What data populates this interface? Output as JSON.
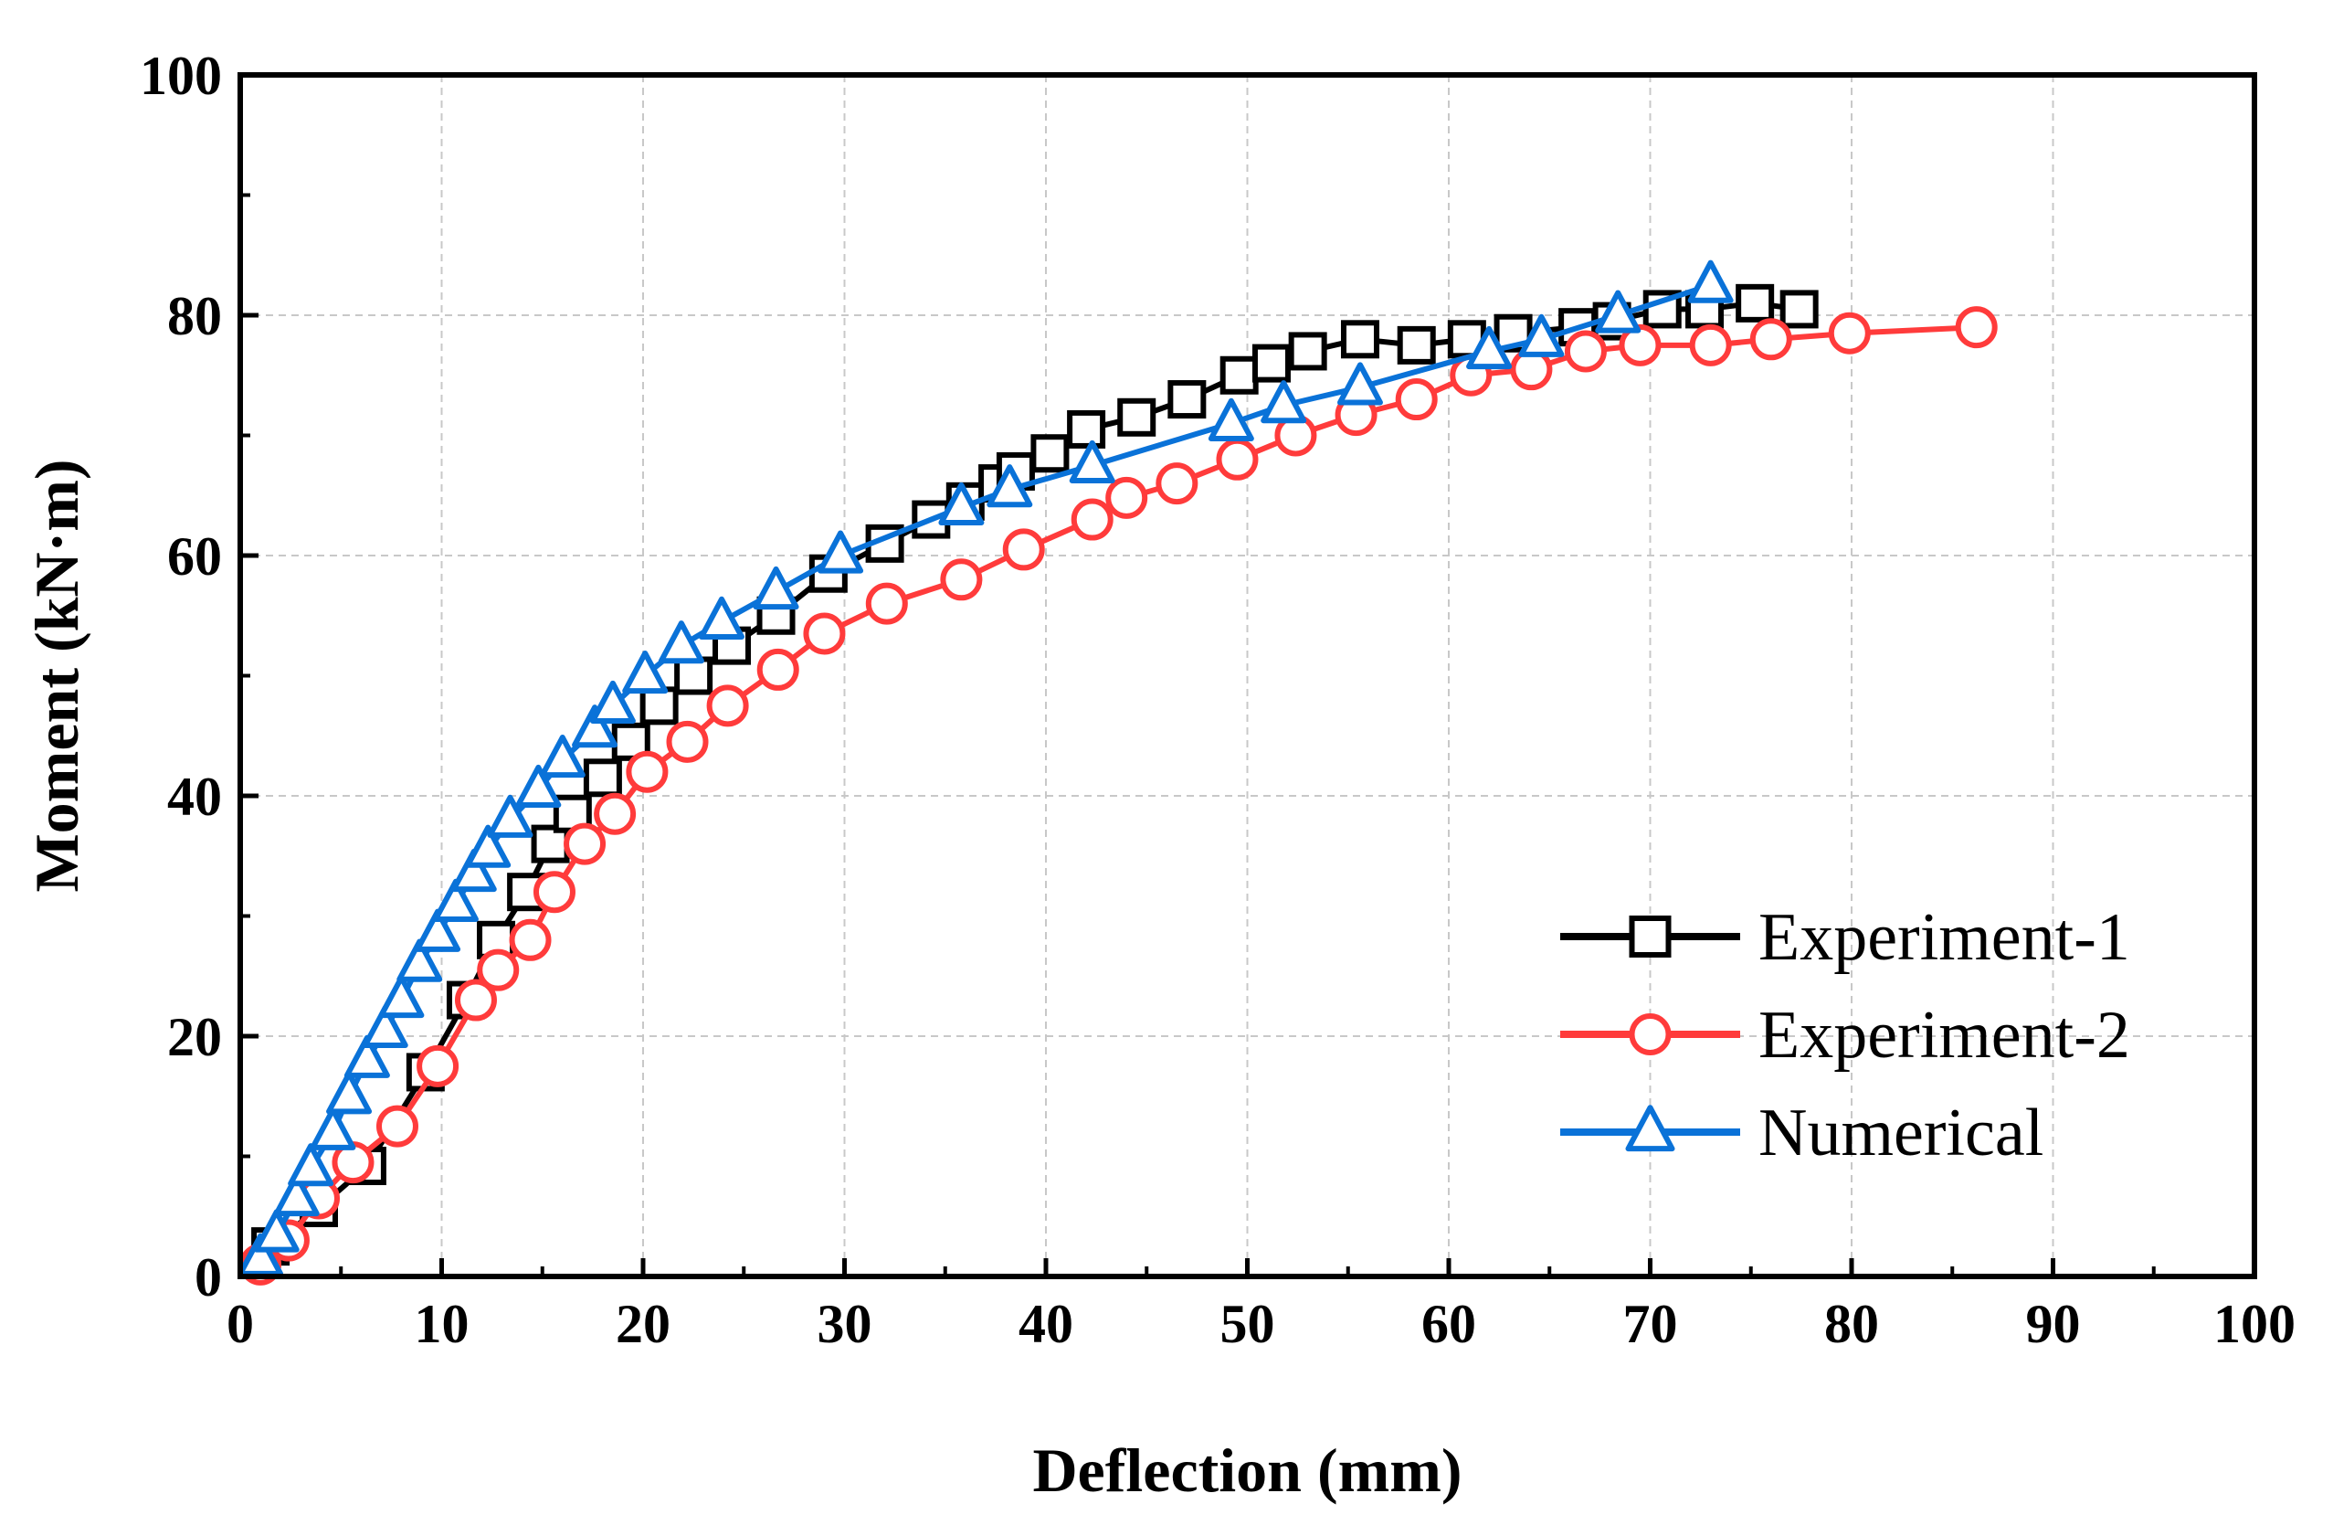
{
  "chart_data": {
    "type": "line",
    "xlabel": "Deflection (mm)",
    "ylabel": "Moment (kN·m)",
    "xlim": [
      0,
      100
    ],
    "ylim": [
      0,
      100
    ],
    "xticks": [
      0,
      10,
      20,
      30,
      40,
      50,
      60,
      70,
      80,
      90,
      100
    ],
    "yticks": [
      0,
      20,
      40,
      60,
      80,
      100
    ],
    "grid": true,
    "legend_position": "bottom-right",
    "series": [
      {
        "name": "Experiment-1",
        "marker": "square",
        "color": "#000000",
        "x": [
          1.5,
          3.9,
          6.3,
          9.2,
          11.2,
          12.7,
          14.2,
          15.4,
          16.5,
          18.0,
          19.4,
          20.8,
          22.5,
          24.4,
          26.6,
          29.2,
          32.0,
          34.3,
          36.0,
          37.6,
          38.5,
          40.2,
          42.0,
          44.5,
          47.0,
          49.6,
          51.2,
          53.0,
          55.6,
          58.4,
          60.9,
          63.2,
          66.4,
          68.1,
          70.6,
          72.7,
          75.2,
          77.4
        ],
        "y": [
          2.5,
          5.7,
          9.2,
          17.0,
          23.0,
          28.0,
          32.0,
          36.0,
          38.5,
          41.5,
          44.5,
          47.5,
          50.0,
          52.5,
          55.0,
          58.5,
          61.0,
          63.0,
          64.5,
          66.0,
          67.0,
          68.5,
          70.5,
          71.5,
          73.0,
          75.0,
          76.0,
          77.0,
          78.0,
          77.5,
          78.0,
          78.5,
          79.0,
          79.5,
          80.5,
          80.5,
          81.0,
          80.5
        ]
      },
      {
        "name": "Experiment-2",
        "marker": "circle",
        "color": "#ff3b3b",
        "x": [
          1.0,
          2.4,
          3.9,
          5.6,
          7.8,
          9.8,
          11.7,
          12.8,
          14.4,
          15.6,
          17.1,
          18.6,
          20.2,
          22.2,
          24.2,
          26.7,
          29.0,
          32.1,
          35.8,
          38.9,
          42.3,
          44.0,
          46.5,
          49.5,
          52.4,
          55.4,
          58.4,
          61.1,
          64.1,
          66.8,
          69.5,
          73.0,
          76.0,
          79.9,
          86.2
        ],
        "y": [
          1.0,
          3.0,
          6.5,
          9.5,
          12.5,
          17.5,
          23.0,
          25.5,
          28.0,
          32.0,
          36.0,
          38.5,
          42.0,
          44.5,
          47.5,
          50.5,
          53.5,
          56.0,
          58.0,
          60.5,
          63.0,
          64.8,
          66.0,
          68.0,
          70.0,
          71.7,
          73.0,
          75.0,
          75.5,
          77.0,
          77.5,
          77.5,
          78.0,
          78.5,
          79.0
        ]
      },
      {
        "name": "Numerical",
        "marker": "triangle",
        "color": "#0a72d8",
        "x": [
          1.0,
          1.8,
          2.8,
          3.5,
          4.6,
          5.4,
          6.3,
          7.2,
          8.0,
          8.9,
          9.8,
          10.7,
          11.6,
          12.3,
          13.4,
          14.8,
          16.0,
          17.6,
          18.5,
          20.1,
          21.9,
          23.9,
          26.6,
          29.8,
          35.8,
          38.2,
          42.3,
          49.2,
          51.8,
          55.6,
          62.0,
          64.6,
          68.4,
          73.0
        ],
        "y": [
          1.5,
          3.5,
          6.5,
          9.0,
          12.0,
          15.0,
          18.0,
          20.5,
          23.0,
          26.0,
          28.5,
          31.0,
          33.5,
          35.5,
          38.0,
          40.5,
          43.0,
          45.5,
          47.5,
          50.0,
          52.5,
          54.5,
          57.0,
          60.0,
          64.0,
          65.5,
          67.5,
          71.0,
          72.5,
          74.0,
          77.0,
          78.0,
          80.0,
          82.5
        ]
      }
    ]
  }
}
